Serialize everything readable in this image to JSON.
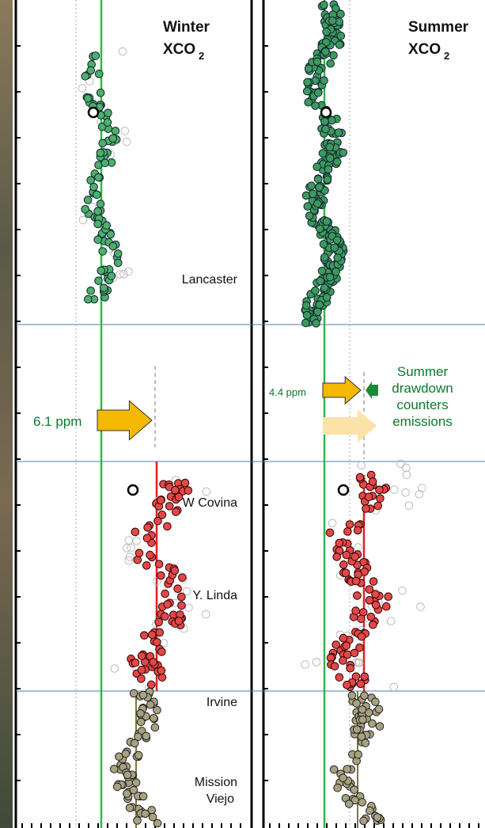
{
  "panels": [
    {
      "title": "Winter",
      "quantity": "XCO",
      "subscript": "2",
      "annotation": "6.1 ppm"
    },
    {
      "title": "Summer",
      "quantity": "XCO",
      "subscript": "2",
      "annotation": "4.4 ppm",
      "note": [
        "Summer",
        "drawdown",
        "counters",
        "emissions"
      ]
    }
  ],
  "regions": [
    "Lancaster",
    "W Covina",
    "Y. Linda",
    "Irvine",
    "Mission",
    "Viejo"
  ]
}
